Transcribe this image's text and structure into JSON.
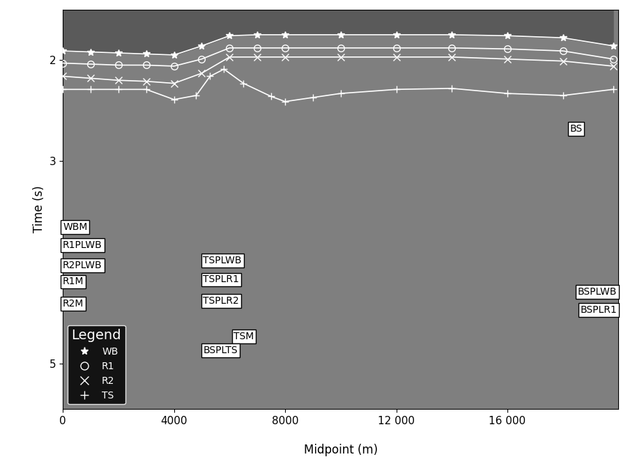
{
  "chart_data": {
    "type": "line",
    "xlabel": "Midpoint (m)",
    "ylabel": "Time (s)",
    "xlim": [
      0,
      20000
    ],
    "ylim": [
      5.45,
      1.5
    ],
    "xticks": [
      0,
      4000,
      8000,
      {
        "value": 12000,
        "label": "12 000"
      },
      {
        "value": 16000,
        "label": "16 000"
      }
    ],
    "yticks": [
      2,
      3,
      5
    ],
    "legend": "lower left",
    "legend_title": "Legend",
    "series": [
      {
        "name": "WB",
        "color": "#ffffff",
        "marker": "star",
        "x": [
          0,
          1000,
          2000,
          3000,
          4000,
          5000,
          6000,
          7000,
          8000,
          10000,
          12000,
          14000,
          16000,
          18000,
          19800
        ],
        "values": [
          1.91,
          1.92,
          1.93,
          1.94,
          1.95,
          1.86,
          1.76,
          1.75,
          1.75,
          1.75,
          1.75,
          1.75,
          1.76,
          1.78,
          1.86
        ]
      },
      {
        "name": "R1",
        "color": "#ffffff",
        "marker": "circle",
        "x": [
          0,
          1000,
          2000,
          3000,
          4000,
          5000,
          6000,
          7000,
          8000,
          10000,
          12000,
          14000,
          16000,
          18000,
          19800
        ],
        "values": [
          2.03,
          2.04,
          2.05,
          2.05,
          2.06,
          1.99,
          1.88,
          1.88,
          1.88,
          1.88,
          1.88,
          1.88,
          1.89,
          1.91,
          1.99
        ]
      },
      {
        "name": "R2",
        "color": "#ffffff",
        "marker": "x",
        "x": [
          0,
          1000,
          2000,
          3000,
          4000,
          5000,
          6000,
          7000,
          8000,
          10000,
          12000,
          14000,
          16000,
          18000,
          19800
        ],
        "values": [
          2.16,
          2.18,
          2.2,
          2.21,
          2.23,
          2.13,
          1.97,
          1.97,
          1.97,
          1.97,
          1.97,
          1.97,
          1.99,
          2.01,
          2.06
        ]
      },
      {
        "name": "TS",
        "color": "#ffffff",
        "marker": "plus",
        "x": [
          0,
          1000,
          2000,
          3000,
          4000,
          4800,
          5300,
          5800,
          6500,
          7500,
          8000,
          9000,
          10000,
          12000,
          14000,
          16000,
          18000,
          19800
        ],
        "values": [
          2.29,
          2.29,
          2.29,
          2.29,
          2.39,
          2.35,
          2.16,
          2.09,
          2.23,
          2.36,
          2.41,
          2.37,
          2.33,
          2.29,
          2.28,
          2.33,
          2.35,
          2.29
        ]
      }
    ],
    "annotations": [
      {
        "text": "BS",
        "x": 18700,
        "y": 2.68
      },
      {
        "text": "WBM",
        "x": 0,
        "y": 3.65
      },
      {
        "text": "R1PLWB",
        "x": 0,
        "y": 3.83
      },
      {
        "text": "R2PLWB",
        "x": 0,
        "y": 4.03
      },
      {
        "text": "R1M",
        "x": 0,
        "y": 4.19
      },
      {
        "text": "R2M",
        "x": 0,
        "y": 4.41
      },
      {
        "text": "TSPLWB",
        "x": 5050,
        "y": 3.98
      },
      {
        "text": "TSPLR1",
        "x": 5050,
        "y": 4.17
      },
      {
        "text": "TSPLR2",
        "x": 5050,
        "y": 4.38
      },
      {
        "text": "TSM",
        "x": 6150,
        "y": 4.73
      },
      {
        "text": "BSPLTS",
        "x": 5050,
        "y": 4.87
      },
      {
        "text": "BSPLWB",
        "x": 19950,
        "y": 4.29
      },
      {
        "text": "BSPLR1",
        "x": 19950,
        "y": 4.47
      }
    ]
  }
}
